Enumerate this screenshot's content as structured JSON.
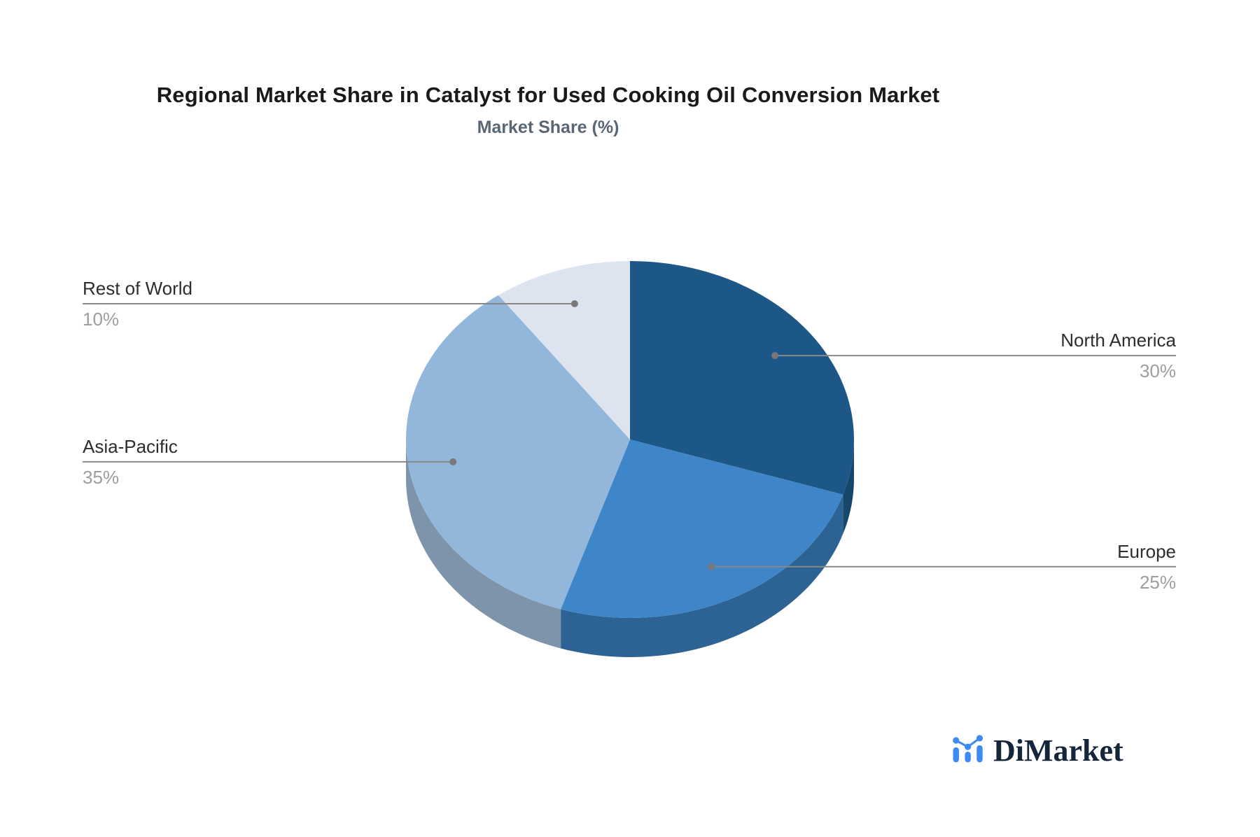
{
  "title": "Regional Market Share in Catalyst for Used Cooking Oil Conversion Market",
  "subtitle": "Market Share (%)",
  "chart_data": {
    "type": "pie",
    "style": "3d",
    "unit": "%",
    "start_angle": "12 o'clock, clockwise",
    "legend_position": "none",
    "labels_style": "leader-lines with dots, category above line, percent below",
    "slices": [
      {
        "label": "North America",
        "value": 30,
        "pct_text": "30%",
        "color": "#1d5787",
        "side_color": "#17466b"
      },
      {
        "label": "Europe",
        "value": 25,
        "pct_text": "25%",
        "color": "#3e86c7",
        "side_color": "#2d6394"
      },
      {
        "label": "Asia-Pacific",
        "value": 35,
        "pct_text": "35%",
        "color": "#93b7db",
        "side_color": "#7e94ab"
      },
      {
        "label": "Rest of World",
        "value": 10,
        "pct_text": "10%",
        "color": "#dde4f0",
        "side_color": "#b9c3d3"
      }
    ]
  },
  "colors": {
    "background": "#ffffff",
    "title": "#1a1a1a",
    "subtitle": "#5a6673",
    "label_text": "#2d2d2d",
    "pct_text": "#9e9e9e",
    "leader_line": "#888888",
    "leader_dot": "#787878",
    "logo_text": "#16263a",
    "logo_icon": "#3d8bf2"
  },
  "logo": {
    "text": "DiMarket",
    "icon": "bar-line-chart-icon"
  }
}
